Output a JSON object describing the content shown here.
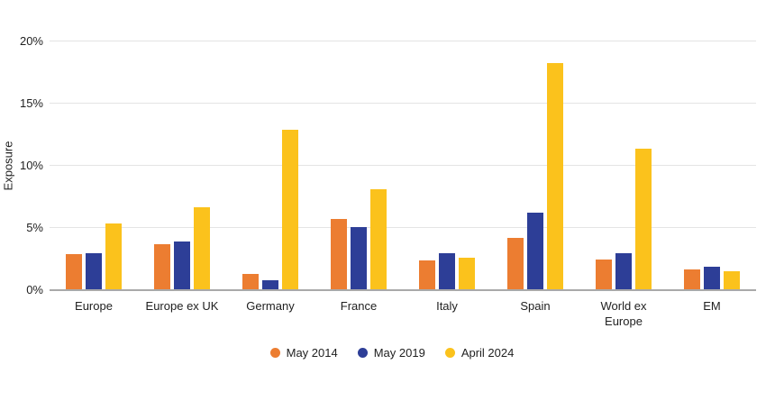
{
  "chart_data": {
    "type": "bar",
    "title": "",
    "xlabel": "",
    "ylabel": "Exposure",
    "ylim": [
      0,
      20
    ],
    "yticks": [
      0,
      5,
      10,
      15,
      20
    ],
    "ytick_suffix": "%",
    "grid": true,
    "legend_position": "bottom",
    "categories": [
      "Europe",
      "Europe ex UK",
      "Germany",
      "France",
      "Italy",
      "Spain",
      "World ex Europe",
      "EM"
    ],
    "series": [
      {
        "name": "May 2014",
        "color": "#EC7D31",
        "values": [
          2.9,
          3.7,
          1.3,
          5.7,
          2.4,
          4.2,
          2.5,
          1.7
        ]
      },
      {
        "name": "May 2019",
        "color": "#2D3E97",
        "values": [
          3.0,
          3.9,
          0.8,
          5.1,
          3.0,
          6.2,
          3.0,
          1.9
        ]
      },
      {
        "name": "April 2024",
        "color": "#FBC21C",
        "values": [
          5.4,
          6.7,
          12.9,
          8.1,
          2.6,
          18.3,
          11.4,
          1.5
        ]
      }
    ],
    "axis_line_color": "#A9A9A9",
    "gridline_color": "#E4E4E4",
    "text_color": "#212121"
  }
}
